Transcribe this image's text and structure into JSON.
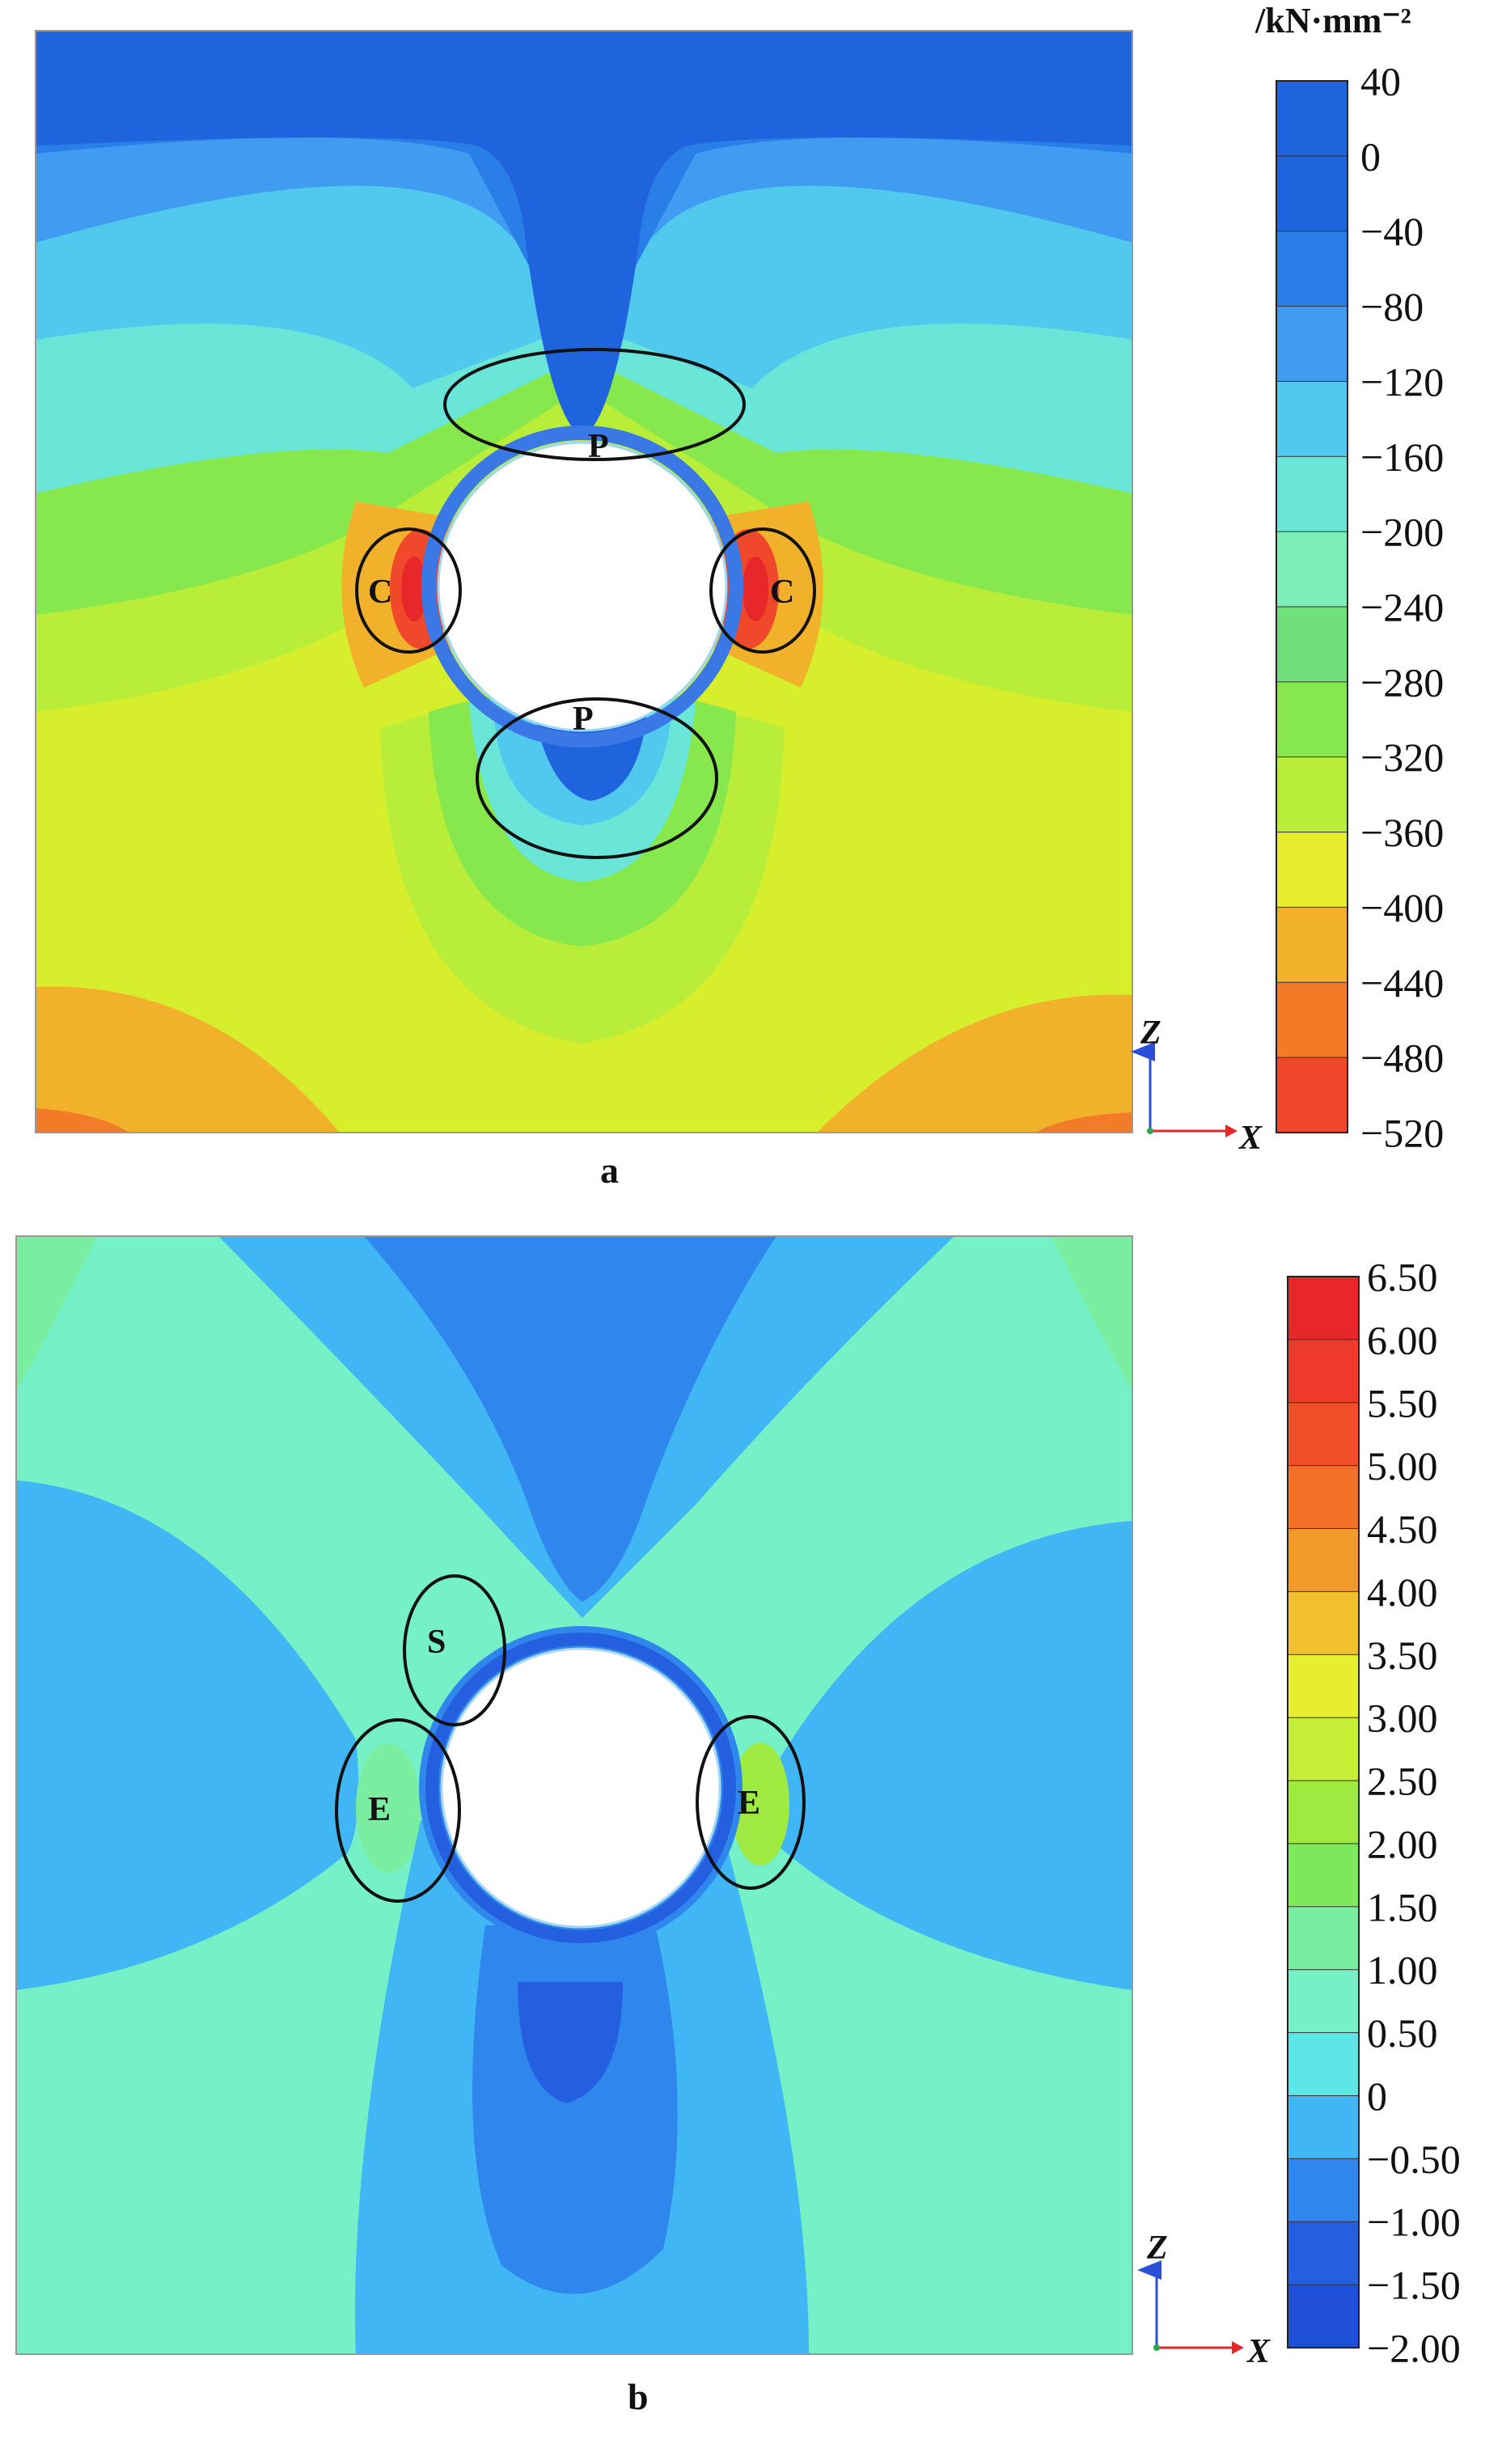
{
  "panels": [
    {
      "id": "a",
      "caption": "a",
      "unit": "/kN·mm⁻²",
      "scale_ticks": [
        "40",
        "0",
        "−40",
        "−80",
        "−120",
        "−160",
        "−200",
        "−240",
        "−280",
        "−320",
        "−360",
        "−400",
        "−440",
        "−480",
        "−520"
      ],
      "scale_colors": [
        "#1f63dd",
        "#1f63dd",
        "#2a7ee8",
        "#3f9cf0",
        "#51c8ee",
        "#69e6d8",
        "#7eeeb8",
        "#6fe07a",
        "#86e84c",
        "#b8ee3a",
        "#e6ee2e",
        "#f2b12a",
        "#f37b27",
        "#f0482a",
        "#e8272a"
      ],
      "markers": [
        "P",
        "P",
        "C",
        "C"
      ],
      "axis_z": "Z",
      "axis_x": "X"
    },
    {
      "id": "b",
      "caption": "b",
      "scale_ticks": [
        "6.50",
        "6.00",
        "5.50",
        "5.00",
        "4.50",
        "4.00",
        "3.50",
        "3.00",
        "2.50",
        "2.00",
        "1.50",
        "1.00",
        "0.50",
        "0",
        "−0.50",
        "−1.00",
        "−1.50",
        "−2.00"
      ],
      "scale_colors": [
        "#e8272a",
        "#ee3a2a",
        "#f04e28",
        "#f37027",
        "#f29a2a",
        "#f2c02c",
        "#e6ee2e",
        "#c6ee36",
        "#9eea40",
        "#7ce85a",
        "#7aeea0",
        "#76f0c6",
        "#5ee6e6",
        "#40b6f4",
        "#2f86ec",
        "#245fe0",
        "#1f4fd8",
        "#1a3ecf"
      ],
      "markers": [
        "S",
        "E",
        "E"
      ],
      "axis_z": "Z",
      "axis_x": "X"
    }
  ]
}
